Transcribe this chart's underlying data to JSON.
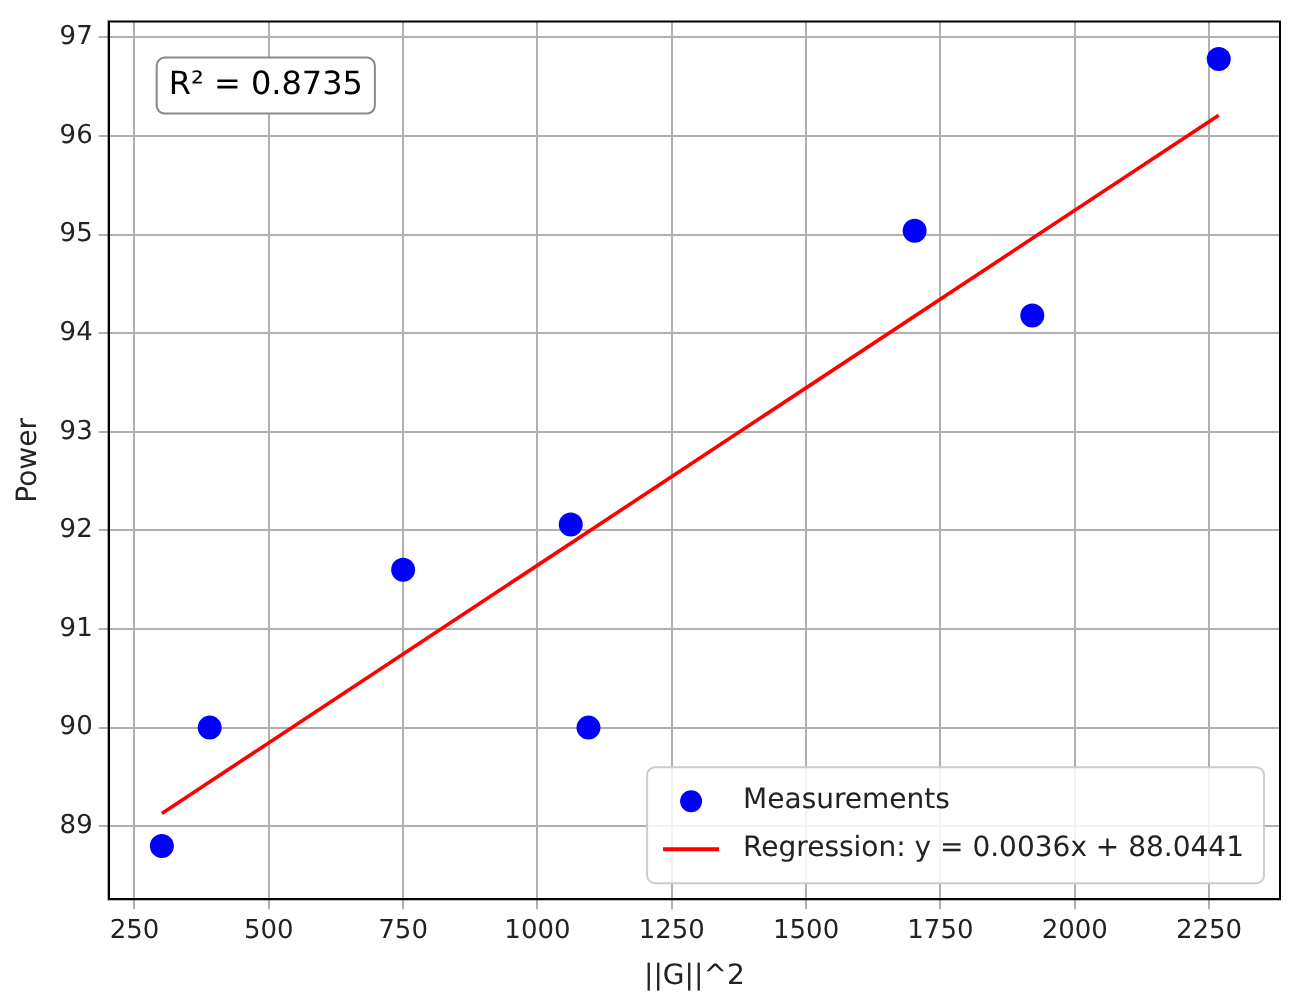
{
  "chart_data": {
    "type": "scatter",
    "xlabel": "||G||^2",
    "ylabel": "Power",
    "xlim": [
      202,
      2382
    ],
    "xticks": [
      250,
      500,
      750,
      1000,
      1250,
      1500,
      1750,
      2000,
      2250
    ],
    "ylim": [
      88.26,
      97.16
    ],
    "yticks": [
      89,
      90,
      91,
      92,
      93,
      94,
      95,
      96,
      97
    ],
    "grid": true,
    "legend": "bottom right",
    "annotations": [
      "R² = 0.8735"
    ],
    "series": [
      {
        "name": "Measurements",
        "type": "scatter",
        "marker": "circle",
        "color": "#0000ff",
        "x": [
          301,
          390,
          750,
          1062,
          1095,
          1702,
          1921,
          2268
        ],
        "values": [
          88.8,
          90.0,
          91.6,
          92.06,
          90.0,
          95.04,
          94.18,
          96.78
        ]
      },
      {
        "name": "Regression: y = 0.0036x + 88.0441",
        "type": "line",
        "marker": "none",
        "color": "#ff0000",
        "x": [
          301,
          2268
        ],
        "values": [
          89.13,
          96.21
        ]
      }
    ]
  }
}
